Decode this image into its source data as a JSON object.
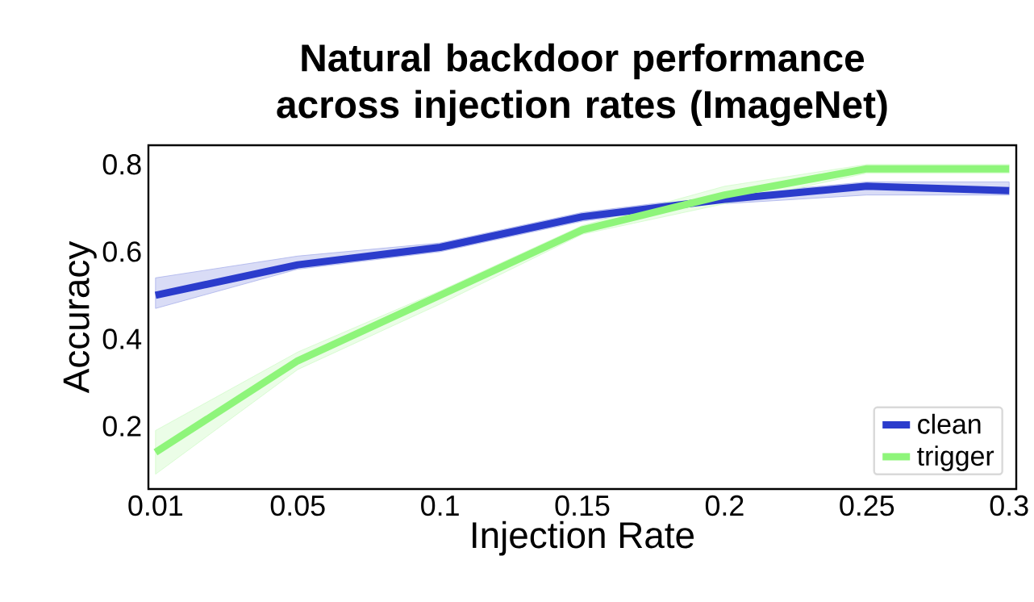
{
  "chart_data": {
    "type": "line",
    "title": "Natural backdoor performance across injection rates (ImageNet)",
    "xlabel": "Injection Rate",
    "ylabel": "Accuracy",
    "categories": [
      "0.01",
      "0.05",
      "0.1",
      "0.15",
      "0.2",
      "0.25",
      "0.3"
    ],
    "series": [
      {
        "name": "clean",
        "color": "#2b3ccc",
        "values": [
          0.5,
          0.57,
          0.61,
          0.68,
          0.72,
          0.75,
          0.74
        ],
        "lower": [
          0.47,
          0.56,
          0.6,
          0.67,
          0.71,
          0.73,
          0.73
        ],
        "upper": [
          0.54,
          0.59,
          0.62,
          0.69,
          0.73,
          0.76,
          0.76
        ]
      },
      {
        "name": "trigger",
        "color": "#8ef57a",
        "values": [
          0.14,
          0.35,
          0.5,
          0.65,
          0.73,
          0.79,
          0.79
        ],
        "lower": [
          0.09,
          0.33,
          0.48,
          0.64,
          0.71,
          0.78,
          0.78
        ],
        "upper": [
          0.19,
          0.37,
          0.51,
          0.66,
          0.75,
          0.8,
          0.8
        ]
      }
    ],
    "ylim": [
      0.056,
      0.844
    ],
    "yticks": [
      0.2,
      0.4,
      0.6,
      0.8
    ],
    "legend": "bottom right",
    "grid": false,
    "marker": "none",
    "line_style": "solid"
  }
}
